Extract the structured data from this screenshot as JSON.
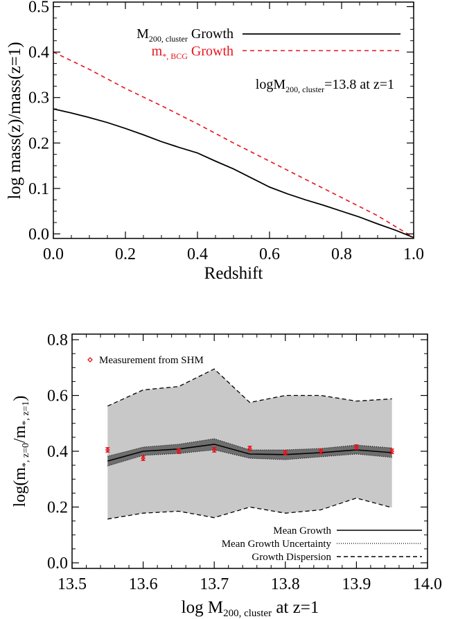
{
  "chart_data": [
    {
      "type": "line",
      "title": "",
      "xlabel": "Redshift",
      "ylabel": "log mass(z)/mass(z=1)",
      "xlim": [
        0.0,
        1.0
      ],
      "ylim": [
        -0.01,
        0.51
      ],
      "xticks": [
        "0.0",
        "0.2",
        "0.4",
        "0.6",
        "0.8",
        "1.0"
      ],
      "yticks": [
        "0.0",
        "0.1",
        "0.2",
        "0.3",
        "0.4",
        "0.5"
      ],
      "legend_position": "top-right",
      "legend": [
        {
          "main": "M",
          "sub": "200, cluster",
          "rest": " Growth",
          "style": "solid",
          "color": "#000000"
        },
        {
          "main": "m",
          "sub": "*, BCG",
          "rest": " Growth",
          "style": "dashed",
          "color": "#e8121a"
        }
      ],
      "annotation": {
        "main": "logM",
        "sub": "200, cluster",
        "rest": "=13.8 at z=1"
      },
      "series": [
        {
          "name": "M200, cluster Growth",
          "color": "#000000",
          "style": "solid",
          "x": [
            0.0,
            0.05,
            0.1,
            0.15,
            0.2,
            0.25,
            0.3,
            0.35,
            0.4,
            0.45,
            0.5,
            0.55,
            0.6,
            0.65,
            0.7,
            0.75,
            0.8,
            0.85,
            0.9,
            0.95,
            1.0
          ],
          "y": [
            0.275,
            0.266,
            0.256,
            0.245,
            0.232,
            0.218,
            0.203,
            0.19,
            0.178,
            0.16,
            0.143,
            0.123,
            0.103,
            0.088,
            0.075,
            0.063,
            0.05,
            0.037,
            0.022,
            0.008,
            -0.008
          ]
        },
        {
          "name": "m*, BCG Growth",
          "color": "#e8121a",
          "style": "dashed",
          "x": [
            0.0,
            0.1,
            0.2,
            0.3,
            0.4,
            0.5,
            0.6,
            0.7,
            0.8,
            0.9,
            1.0
          ],
          "y": [
            0.4,
            0.362,
            0.32,
            0.282,
            0.242,
            0.2,
            0.16,
            0.12,
            0.08,
            0.04,
            -0.008
          ]
        }
      ]
    },
    {
      "type": "line",
      "title": "",
      "xlabel": {
        "main": "log M",
        "sub": "200, cluster",
        "rest": " at z=1"
      },
      "ylabel": {
        "main": "log(m",
        "sub1": "*, z=0",
        "mid": "/m",
        "sub2": "*, z=1",
        "rest": ")"
      },
      "xlim": [
        13.5,
        14.0
      ],
      "ylim": [
        -0.02,
        0.82
      ],
      "xticks": [
        "13.5",
        "13.6",
        "13.7",
        "13.8",
        "13.9",
        "14.0"
      ],
      "yticks": [
        "0.0",
        "0.2",
        "0.4",
        "0.6",
        "0.8"
      ],
      "legend_position": "top-left and bottom-right",
      "marker_legend": "Measurement from SHM",
      "line_legend": [
        {
          "label": "Mean Growth",
          "style": "solid"
        },
        {
          "label": "Mean Growth Uncertainty",
          "style": "dotted"
        },
        {
          "label": "Growth Dispersion",
          "style": "dashed"
        }
      ],
      "colors": {
        "dispersion_fill": "#c8c8c8",
        "uncertainty_fill": "#6e6e6e",
        "measurement": "#e8121a"
      },
      "x": [
        13.55,
        13.6,
        13.65,
        13.7,
        13.75,
        13.8,
        13.85,
        13.9,
        13.95
      ],
      "mean_growth": [
        0.365,
        0.4,
        0.408,
        0.425,
        0.39,
        0.388,
        0.395,
        0.405,
        0.395
      ],
      "uncertainty_upper": [
        0.382,
        0.415,
        0.425,
        0.445,
        0.405,
        0.405,
        0.41,
        0.422,
        0.412
      ],
      "uncertainty_lower": [
        0.347,
        0.385,
        0.392,
        0.405,
        0.375,
        0.37,
        0.38,
        0.39,
        0.378
      ],
      "dispersion_upper": [
        0.562,
        0.62,
        0.632,
        0.695,
        0.575,
        0.6,
        0.6,
        0.58,
        0.588
      ],
      "dispersion_lower": [
        0.157,
        0.178,
        0.185,
        0.162,
        0.2,
        0.178,
        0.19,
        0.232,
        0.198
      ],
      "measurements": [
        {
          "x": 13.55,
          "y": 0.405,
          "err": 0.008
        },
        {
          "x": 13.6,
          "y": 0.375,
          "err": 0.008
        },
        {
          "x": 13.65,
          "y": 0.4,
          "err": 0.008
        },
        {
          "x": 13.7,
          "y": 0.405,
          "err": 0.008
        },
        {
          "x": 13.75,
          "y": 0.41,
          "err": 0.008
        },
        {
          "x": 13.8,
          "y": 0.395,
          "err": 0.008
        },
        {
          "x": 13.85,
          "y": 0.4,
          "err": 0.008
        },
        {
          "x": 13.9,
          "y": 0.415,
          "err": 0.008
        },
        {
          "x": 13.95,
          "y": 0.4,
          "err": 0.008
        }
      ]
    }
  ]
}
